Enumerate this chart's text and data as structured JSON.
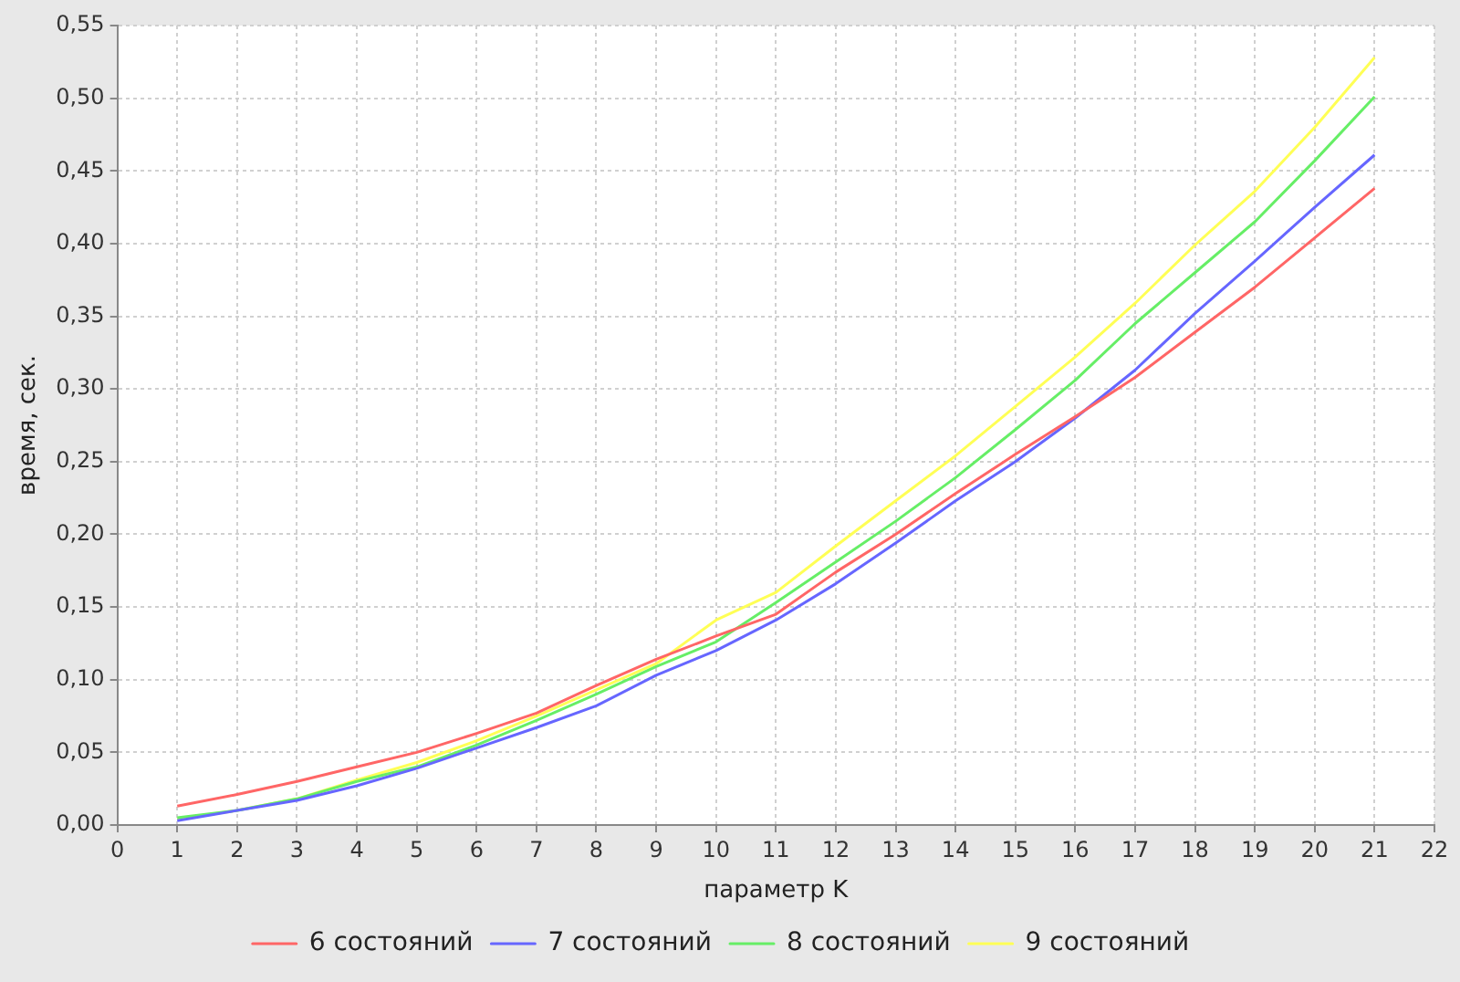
{
  "chart_data": {
    "type": "line",
    "xlabel": "параметр K",
    "ylabel": "время, сек.",
    "x": [
      1,
      2,
      3,
      4,
      5,
      6,
      7,
      8,
      9,
      10,
      11,
      12,
      13,
      14,
      15,
      16,
      17,
      18,
      19,
      20,
      21
    ],
    "series": [
      {
        "name": "6 состояний",
        "color": "#ff6666",
        "values": [
          0.013,
          0.021,
          0.03,
          0.04,
          0.05,
          0.063,
          0.077,
          0.096,
          0.114,
          0.13,
          0.145,
          0.174,
          0.2,
          0.228,
          0.255,
          0.281,
          0.308,
          0.339,
          0.37,
          0.404,
          0.438
        ]
      },
      {
        "name": "7 состояний",
        "color": "#6666ff",
        "values": [
          0.003,
          0.01,
          0.017,
          0.027,
          0.039,
          0.053,
          0.067,
          0.082,
          0.103,
          0.12,
          0.141,
          0.166,
          0.194,
          0.223,
          0.25,
          0.28,
          0.313,
          0.352,
          0.388,
          0.425,
          0.461
        ]
      },
      {
        "name": "8 состояний",
        "color": "#66ee66",
        "values": [
          0.005,
          0.01,
          0.018,
          0.03,
          0.04,
          0.055,
          0.072,
          0.09,
          0.109,
          0.126,
          0.153,
          0.181,
          0.209,
          0.239,
          0.272,
          0.306,
          0.345,
          0.38,
          0.415,
          0.457,
          0.501
        ]
      },
      {
        "name": "9 состояний",
        "color": "#ffff55",
        "values": [
          0.004,
          0.01,
          0.018,
          0.031,
          0.043,
          0.058,
          0.075,
          0.093,
          0.111,
          0.141,
          0.16,
          0.192,
          0.223,
          0.254,
          0.288,
          0.322,
          0.359,
          0.399,
          0.436,
          0.48,
          0.528
        ]
      }
    ],
    "xlim": [
      0,
      22
    ],
    "xticks": [
      0,
      1,
      2,
      3,
      4,
      5,
      6,
      7,
      8,
      9,
      10,
      11,
      12,
      13,
      14,
      15,
      16,
      17,
      18,
      19,
      20,
      21,
      22
    ],
    "ylim": [
      0,
      0.55
    ],
    "yticks": [
      {
        "value": 0,
        "label": "0,00"
      },
      {
        "value": 0.05,
        "label": "0,05"
      },
      {
        "value": 0.1,
        "label": "0,10"
      },
      {
        "value": 0.15,
        "label": "0,15"
      },
      {
        "value": 0.2,
        "label": "0,20"
      },
      {
        "value": 0.25,
        "label": "0,25"
      },
      {
        "value": 0.3,
        "label": "0,30"
      },
      {
        "value": 0.35,
        "label": "0,35"
      },
      {
        "value": 0.4,
        "label": "0,40"
      },
      {
        "value": 0.45,
        "label": "0,45"
      },
      {
        "value": 0.5,
        "label": "0,50"
      },
      {
        "value": 0.55,
        "label": "0,55"
      }
    ],
    "grid": true,
    "legend": "bottom",
    "marker": "none",
    "line_style": "solid"
  }
}
